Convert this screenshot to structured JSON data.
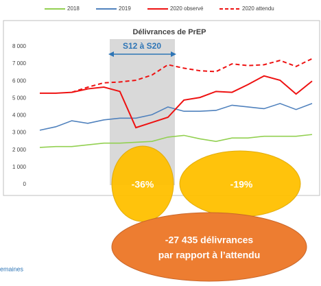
{
  "chart_data": {
    "type": "line",
    "title": "Délivrances de PrEP",
    "categories": [
      null,
      null,
      null,
      null,
      null,
      null,
      null,
      null,
      null,
      null,
      null,
      null,
      null,
      null,
      null,
      null,
      null,
      null
    ],
    "series": [
      {
        "name": "2018",
        "color": "#92d050",
        "dashed": false,
        "values": [
          2150,
          2200,
          2200,
          2300,
          2400,
          2400,
          2450,
          2500,
          2750,
          2850,
          2650,
          2500,
          2700,
          2700,
          2800,
          2800,
          2800,
          2900
        ]
      },
      {
        "name": "2019",
        "color": "#4f81bd",
        "dashed": false,
        "values": [
          3150,
          3350,
          3700,
          3550,
          3750,
          3850,
          3850,
          4050,
          4500,
          4250,
          4250,
          4300,
          4600,
          4500,
          4400,
          4700,
          4350,
          4700
        ]
      },
      {
        "name": "2020 observé",
        "color": "#ee1111",
        "dashed": false,
        "values": [
          5300,
          5300,
          5350,
          5550,
          5650,
          5400,
          3300,
          3600,
          3900,
          4900,
          5050,
          5400,
          5350,
          5800,
          6300,
          6050,
          5250,
          6000
        ]
      },
      {
        "name": "2020 attendu",
        "color": "#ee1111",
        "dashed": true,
        "values": [
          null,
          null,
          5350,
          5650,
          5900,
          5950,
          6050,
          6350,
          6950,
          6750,
          6600,
          6550,
          7000,
          6900,
          6950,
          7200,
          6850,
          7300
        ]
      }
    ],
    "ylim": [
      0,
      8000
    ],
    "yticks": [
      0,
      {
        "value": 1000,
        "label": "1 000"
      },
      {
        "value": 2000,
        "label": "2 000"
      },
      {
        "value": 3000,
        "label": "3 000"
      },
      {
        "value": 4000,
        "label": "4 000"
      },
      {
        "value": 5000,
        "label": "5 000"
      },
      {
        "value": 6000,
        "label": "6 000"
      },
      {
        "value": 7000,
        "label": "7 000"
      },
      {
        "value": 8000,
        "label": "8 000"
      }
    ],
    "grid": false,
    "legend": "top",
    "period_label": "S12 à S20",
    "annotations": [
      "-36%",
      "-19%",
      "-27 435 délivrances",
      "par rapport à l’attendu"
    ],
    "footnote": "emaines"
  }
}
